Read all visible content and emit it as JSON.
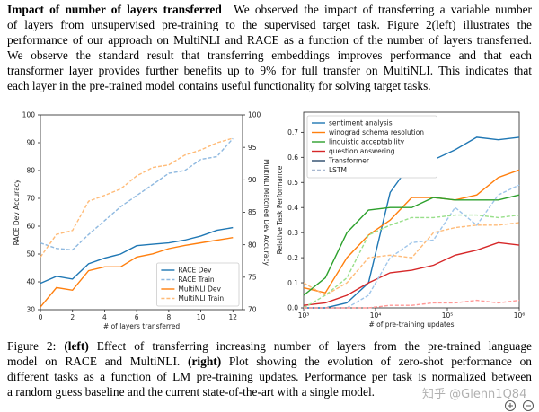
{
  "paragraph": {
    "heading": "Impact of number of layers transferred",
    "lines": [
      "We observed the impact of transferring a variable number",
      "of layers from unsupervised pre-training to the supervised target task. Figure 2(left) illustrates the",
      "performance of our approach on MultiNLI and RACE as a function of the number of layers transferred.",
      "We observe the standard result that transferring embeddings improves performance and that each",
      "transformer layer provides further benefits up to 9% for full transfer on MultiNLI. This indicates that",
      "each layer in the pre-trained model contains useful functionality for solving target tasks."
    ]
  },
  "chart_data": [
    {
      "type": "line",
      "x": [
        0,
        1,
        2,
        3,
        4,
        5,
        6,
        7,
        8,
        9,
        10,
        11,
        12
      ],
      "xlim": [
        0,
        12.6
      ],
      "xticks": [
        0,
        2,
        4,
        6,
        8,
        10,
        12
      ],
      "ylim": [
        30,
        100
      ],
      "yticks": [
        30,
        40,
        50,
        60,
        70,
        80,
        90,
        100
      ],
      "y2lim": [
        70,
        100
      ],
      "y2ticks": [
        70,
        75,
        80,
        85,
        90,
        95,
        100
      ],
      "xlabel": "# of layers transferred",
      "ylabel": "RACE Dev Accuracy",
      "ylabel_color": "#1f77b4",
      "y2label": "MultiNLI Matched Dev Accuracy",
      "y2label_color": "#ff7f0e",
      "legend": "lower right",
      "series": [
        {
          "name": "RACE Dev",
          "color": "#1f77b4",
          "dash": "solid",
          "values": [
            39.5,
            42,
            41,
            46.5,
            48.5,
            50,
            53,
            53.5,
            54,
            55,
            56.5,
            58.5,
            59.5
          ]
        },
        {
          "name": "RACE Train",
          "color": "#8fb9e0",
          "dash": "dashed",
          "values": [
            54,
            52,
            51.5,
            57,
            62,
            67,
            71,
            75,
            79,
            80,
            84,
            85,
            91.5
          ]
        },
        {
          "name": "MultiNLI Dev",
          "color": "#ff7f0e",
          "dash": "solid",
          "axis": "y2",
          "values": [
            70.4,
            73.4,
            73.0,
            76.0,
            76.6,
            76.6,
            78.1,
            78.6,
            79.4,
            79.9,
            80.3,
            80.7,
            81.1
          ]
        },
        {
          "name": "MultiNLI Train",
          "color": "#ffbb78",
          "dash": "dashed",
          "axis": "y2",
          "values": [
            78.1,
            81.6,
            82.2,
            86.7,
            87.6,
            88.6,
            90.6,
            91.9,
            92.3,
            93.8,
            94.6,
            95.7,
            96.4
          ]
        }
      ]
    },
    {
      "type": "line",
      "xscale": "log",
      "x": [
        1000,
        2000,
        4000,
        8000,
        16000,
        32000,
        64000,
        128000,
        256000,
        512000,
        1000000
      ],
      "xlim": [
        1000,
        1000000
      ],
      "xticks": [
        {
          "value": 1000,
          "label": "10³"
        },
        {
          "value": 10000,
          "label": "10⁴"
        },
        {
          "value": 100000,
          "label": "10⁵"
        },
        {
          "value": 1000000,
          "label": "10⁶"
        }
      ],
      "ylim": [
        0,
        0.78
      ],
      "yticks": [
        {
          "value": 0,
          "label": "0.0"
        },
        {
          "value": 0.1,
          "label": "0.1"
        },
        {
          "value": 0.2,
          "label": "0.2"
        },
        {
          "value": 0.3,
          "label": "0.3"
        },
        {
          "value": 0.4,
          "label": "0.4"
        },
        {
          "value": 0.5,
          "label": "0.5"
        },
        {
          "value": 0.6,
          "label": "0.6"
        },
        {
          "value": 0.7,
          "label": "0.7"
        }
      ],
      "xlabel": "# of pre-training updates",
      "ylabel": "Relative Task Performance",
      "legend": "upper left",
      "series": [
        {
          "name": "sentiment analysis",
          "color": "#1f77b4",
          "dash": "solid",
          "values": [
            0,
            0,
            0.02,
            0.1,
            0.46,
            0.58,
            0.59,
            0.63,
            0.68,
            0.67,
            0.68
          ]
        },
        {
          "name": "winograd schema resolution",
          "color": "#ff7f0e",
          "dash": "solid",
          "values": [
            0.08,
            0.06,
            0.2,
            0.29,
            0.35,
            0.44,
            0.44,
            0.43,
            0.45,
            0.52,
            0.55
          ]
        },
        {
          "name": "linguistic acceptability",
          "color": "#2ca02c",
          "dash": "solid",
          "values": [
            0.05,
            0.12,
            0.3,
            0.39,
            0.4,
            0.4,
            0.44,
            0.43,
            0.43,
            0.43,
            0.45
          ]
        },
        {
          "name": "question answering",
          "color": "#d62728",
          "dash": "solid",
          "values": [
            0.01,
            0.02,
            0.05,
            0.1,
            0.14,
            0.15,
            0.17,
            0.21,
            0.23,
            0.26,
            0.25
          ]
        },
        {
          "color": "#9ec5ea",
          "dash": "dashed",
          "values": [
            0,
            0,
            0,
            0.05,
            0.2,
            0.26,
            0.27,
            0.4,
            0.33,
            0.45,
            0.49
          ]
        },
        {
          "color": "#ffbb78",
          "dash": "dashed",
          "values": [
            0.1,
            0.05,
            0.1,
            0.2,
            0.21,
            0.2,
            0.3,
            0.32,
            0.33,
            0.33,
            0.34
          ]
        },
        {
          "color": "#98df8a",
          "dash": "dashed",
          "values": [
            0,
            0.05,
            0.12,
            0.29,
            0.33,
            0.36,
            0.36,
            0.37,
            0.37,
            0.36,
            0.37
          ]
        },
        {
          "color": "#ff9896",
          "dash": "dashed",
          "values": [
            0,
            0,
            0,
            0,
            0.01,
            0.01,
            0.02,
            0.02,
            0.03,
            0.02,
            0.03
          ]
        }
      ],
      "style_legend": [
        {
          "name": "Transformer",
          "color": "#2a4a6a",
          "dash": "solid"
        },
        {
          "name": "LSTM",
          "color": "#a8b8d0",
          "dash": "dashed"
        }
      ]
    }
  ],
  "caption": {
    "lines": [
      [
        {
          "text": "Figure 2: "
        },
        {
          "text": "(left)",
          "bold": true
        },
        {
          "text": " Effect of transferring increasing number of layers from the pre-trained language"
        }
      ],
      [
        {
          "text": "model on RACE and MultiNLI. "
        },
        {
          "text": "(right)",
          "bold": true
        },
        {
          "text": " Plot showing the evolution of zero-shot performance on"
        }
      ],
      [
        {
          "text": "different tasks as a function of LM pre-training updates. Performance per task is normalized between"
        }
      ],
      [
        {
          "text": "a random guess baseline and the current state-of-the-art with a single model."
        }
      ]
    ]
  },
  "watermark": "知乎 @Glenn1Q84"
}
